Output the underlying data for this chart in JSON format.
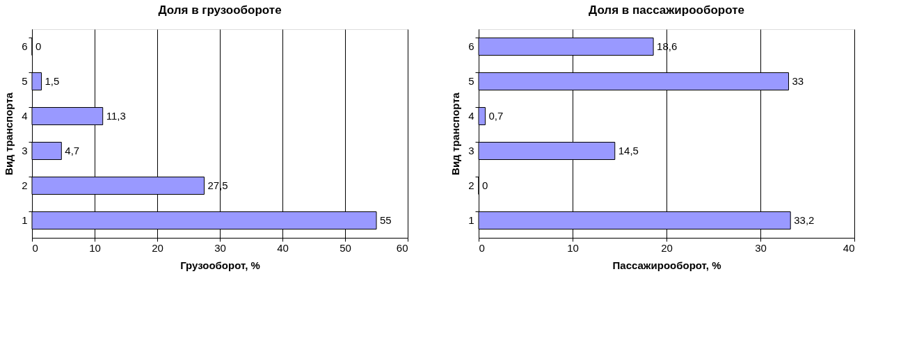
{
  "chart_data": [
    {
      "type": "bar",
      "orientation": "horizontal",
      "title": "Доля в грузообороте",
      "xlabel": "Грузооборот, %",
      "ylabel": "Вид транспорта",
      "categories": [
        "6",
        "5",
        "4",
        "3",
        "2",
        "1"
      ],
      "values": [
        0,
        1.5,
        11.3,
        4.7,
        27.5,
        55
      ],
      "value_labels": [
        "0",
        "1,5",
        "11,3",
        "4,7",
        "27,5",
        "55"
      ],
      "color": "#9999ff",
      "xlim": [
        0,
        60
      ],
      "xticks": [
        0,
        10,
        20,
        30,
        40,
        50,
        60
      ],
      "grid": "x"
    },
    {
      "type": "bar",
      "orientation": "horizontal",
      "title": "Доля в пассажирообороте",
      "xlabel": "Пассажирооборот, %",
      "ylabel": "Вид транспорта",
      "categories": [
        "6",
        "5",
        "4",
        "3",
        "2",
        "1"
      ],
      "values": [
        18.6,
        33,
        0.7,
        14.5,
        0,
        33.2
      ],
      "value_labels": [
        "18,6",
        "33",
        "0,7",
        "14,5",
        "0",
        "33,2"
      ],
      "color": "#9999ff",
      "xlim": [
        0,
        40
      ],
      "xticks": [
        0,
        10,
        20,
        30,
        40
      ],
      "grid": "x"
    }
  ]
}
